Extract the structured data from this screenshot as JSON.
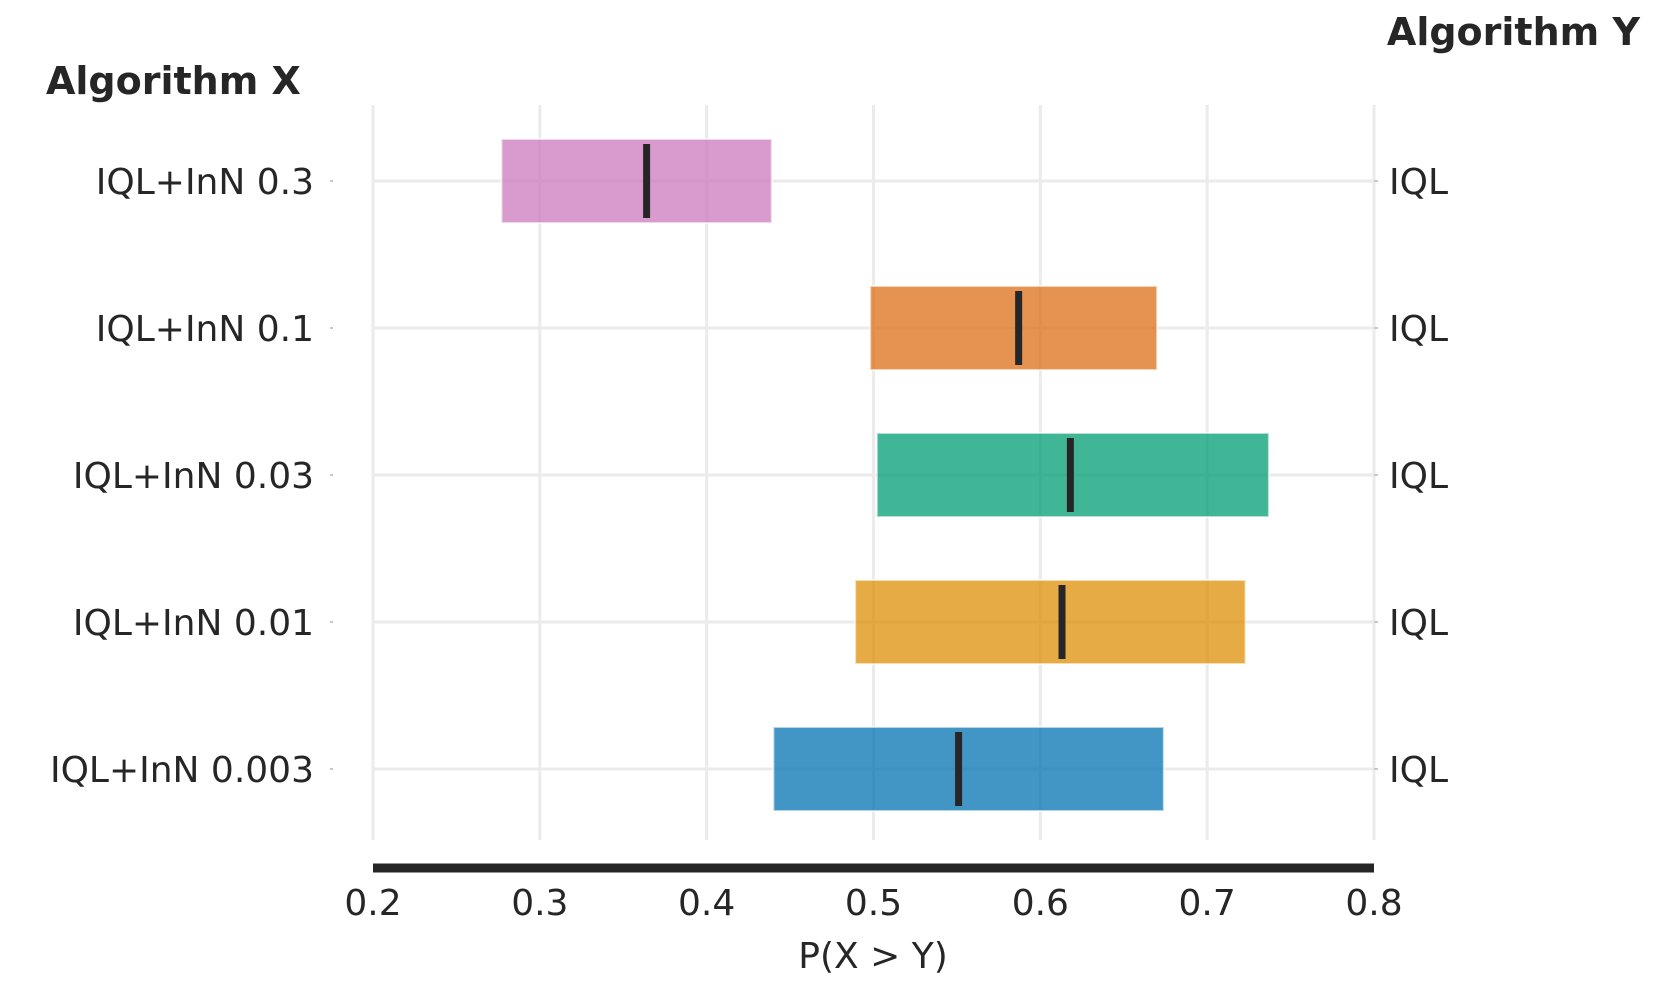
{
  "chart_data": {
    "type": "interval",
    "left_header": "Algorithm X",
    "right_header": "Algorithm Y",
    "xlabel": "P(X > Y)",
    "xlim": [
      0.2,
      0.8
    ],
    "xticks": [
      "0.2",
      "0.3",
      "0.4",
      "0.5",
      "0.6",
      "0.7",
      "0.8"
    ],
    "grid": true,
    "rows": [
      {
        "x_label": "IQL+InN 0.3",
        "y_label": "IQL",
        "lower": 0.277,
        "upper": 0.439,
        "point": 0.364,
        "color": "#cc78bc"
      },
      {
        "x_label": "IQL+InN 0.1",
        "y_label": "IQL",
        "lower": 0.498,
        "upper": 0.67,
        "point": 0.587,
        "color": "#de6d16"
      },
      {
        "x_label": "IQL+InN 0.03",
        "y_label": "IQL",
        "lower": 0.502,
        "upper": 0.737,
        "point": 0.618,
        "color": "#029e73"
      },
      {
        "x_label": "IQL+InN 0.01",
        "y_label": "IQL",
        "lower": 0.489,
        "upper": 0.723,
        "point": 0.613,
        "color": "#de8f05"
      },
      {
        "x_label": "IQL+InN 0.003",
        "y_label": "IQL",
        "lower": 0.44,
        "upper": 0.674,
        "point": 0.551,
        "color": "#0173b2"
      }
    ]
  }
}
